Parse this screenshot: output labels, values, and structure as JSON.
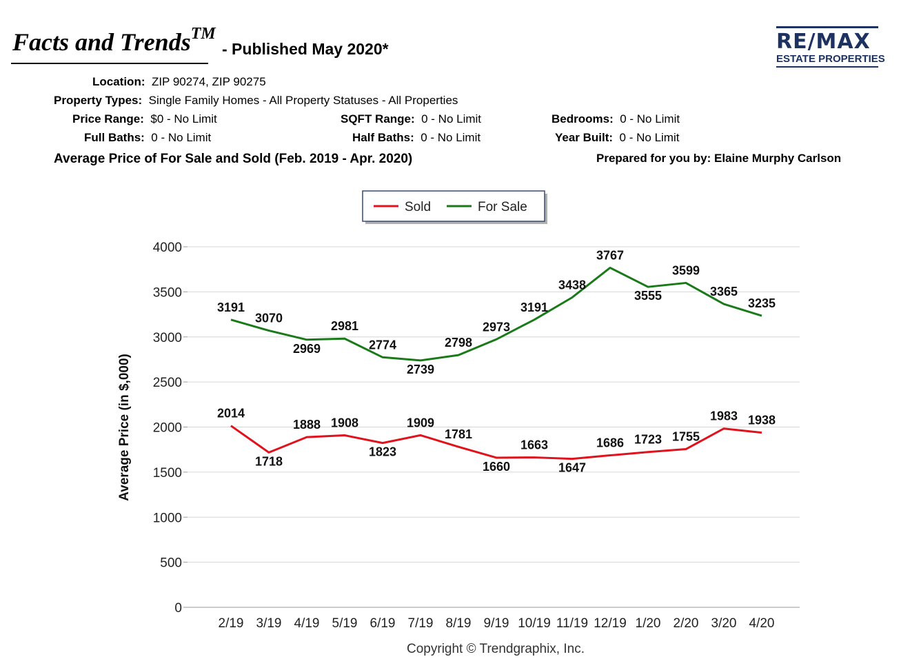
{
  "header": {
    "title": "Facts and Trends",
    "title_sup": "TM",
    "published": "- Published May 2020*",
    "logo_main": "RE/MAX",
    "logo_sub": "ESTATE PROPERTIES"
  },
  "criteria": {
    "location_label": "Location:",
    "location_value": "ZIP 90274, ZIP 90275",
    "property_types_label": "Property Types:",
    "property_types_value": "Single Family Homes - All Property Statuses - All Properties",
    "price_range_label": "Price Range:",
    "price_range_value": "$0 - No Limit",
    "sqft_range_label": "SQFT Range:",
    "sqft_range_value": "0 - No Limit",
    "bedrooms_label": "Bedrooms:",
    "bedrooms_value": "0 - No Limit",
    "full_baths_label": "Full Baths:",
    "full_baths_value": "0 - No Limit",
    "half_baths_label": "Half Baths:",
    "half_baths_value": "0 - No Limit",
    "year_built_label": "Year Built:",
    "year_built_value": "0 - No Limit"
  },
  "subtitle": "Average Price of For Sale and Sold (Feb. 2019 - Apr. 2020)",
  "prepared_by": "Prepared for you by: Elaine Murphy Carlson",
  "colors": {
    "sold": "#e0121b",
    "for_sale": "#1a7a1a",
    "logo": "#1d3261"
  },
  "chart_data": {
    "type": "line",
    "title": "",
    "xlabel": "",
    "ylabel": "Average Price (in $,000)",
    "ylim": [
      0,
      4000
    ],
    "yticks": [
      "0",
      "500",
      "1000",
      "1500",
      "2000",
      "2500",
      "3000",
      "3500",
      "4000"
    ],
    "grid": true,
    "legend": "top-center",
    "categories": [
      "2/19",
      "3/19",
      "4/19",
      "5/19",
      "6/19",
      "7/19",
      "8/19",
      "9/19",
      "10/19",
      "11/19",
      "12/19",
      "1/20",
      "2/20",
      "3/20",
      "4/20"
    ],
    "series": [
      {
        "name": "Sold",
        "values": [
          2014,
          1718,
          1888,
          1908,
          1823,
          1909,
          1781,
          1660,
          1663,
          1647,
          1686,
          1723,
          1755,
          1983,
          1938
        ]
      },
      {
        "name": "For Sale",
        "values": [
          3191,
          3070,
          2969,
          2981,
          2774,
          2739,
          2798,
          2973,
          3191,
          3438,
          3767,
          3555,
          3599,
          3365,
          3235
        ]
      }
    ],
    "copyright": "Copyright © Trendgraphix, Inc."
  }
}
